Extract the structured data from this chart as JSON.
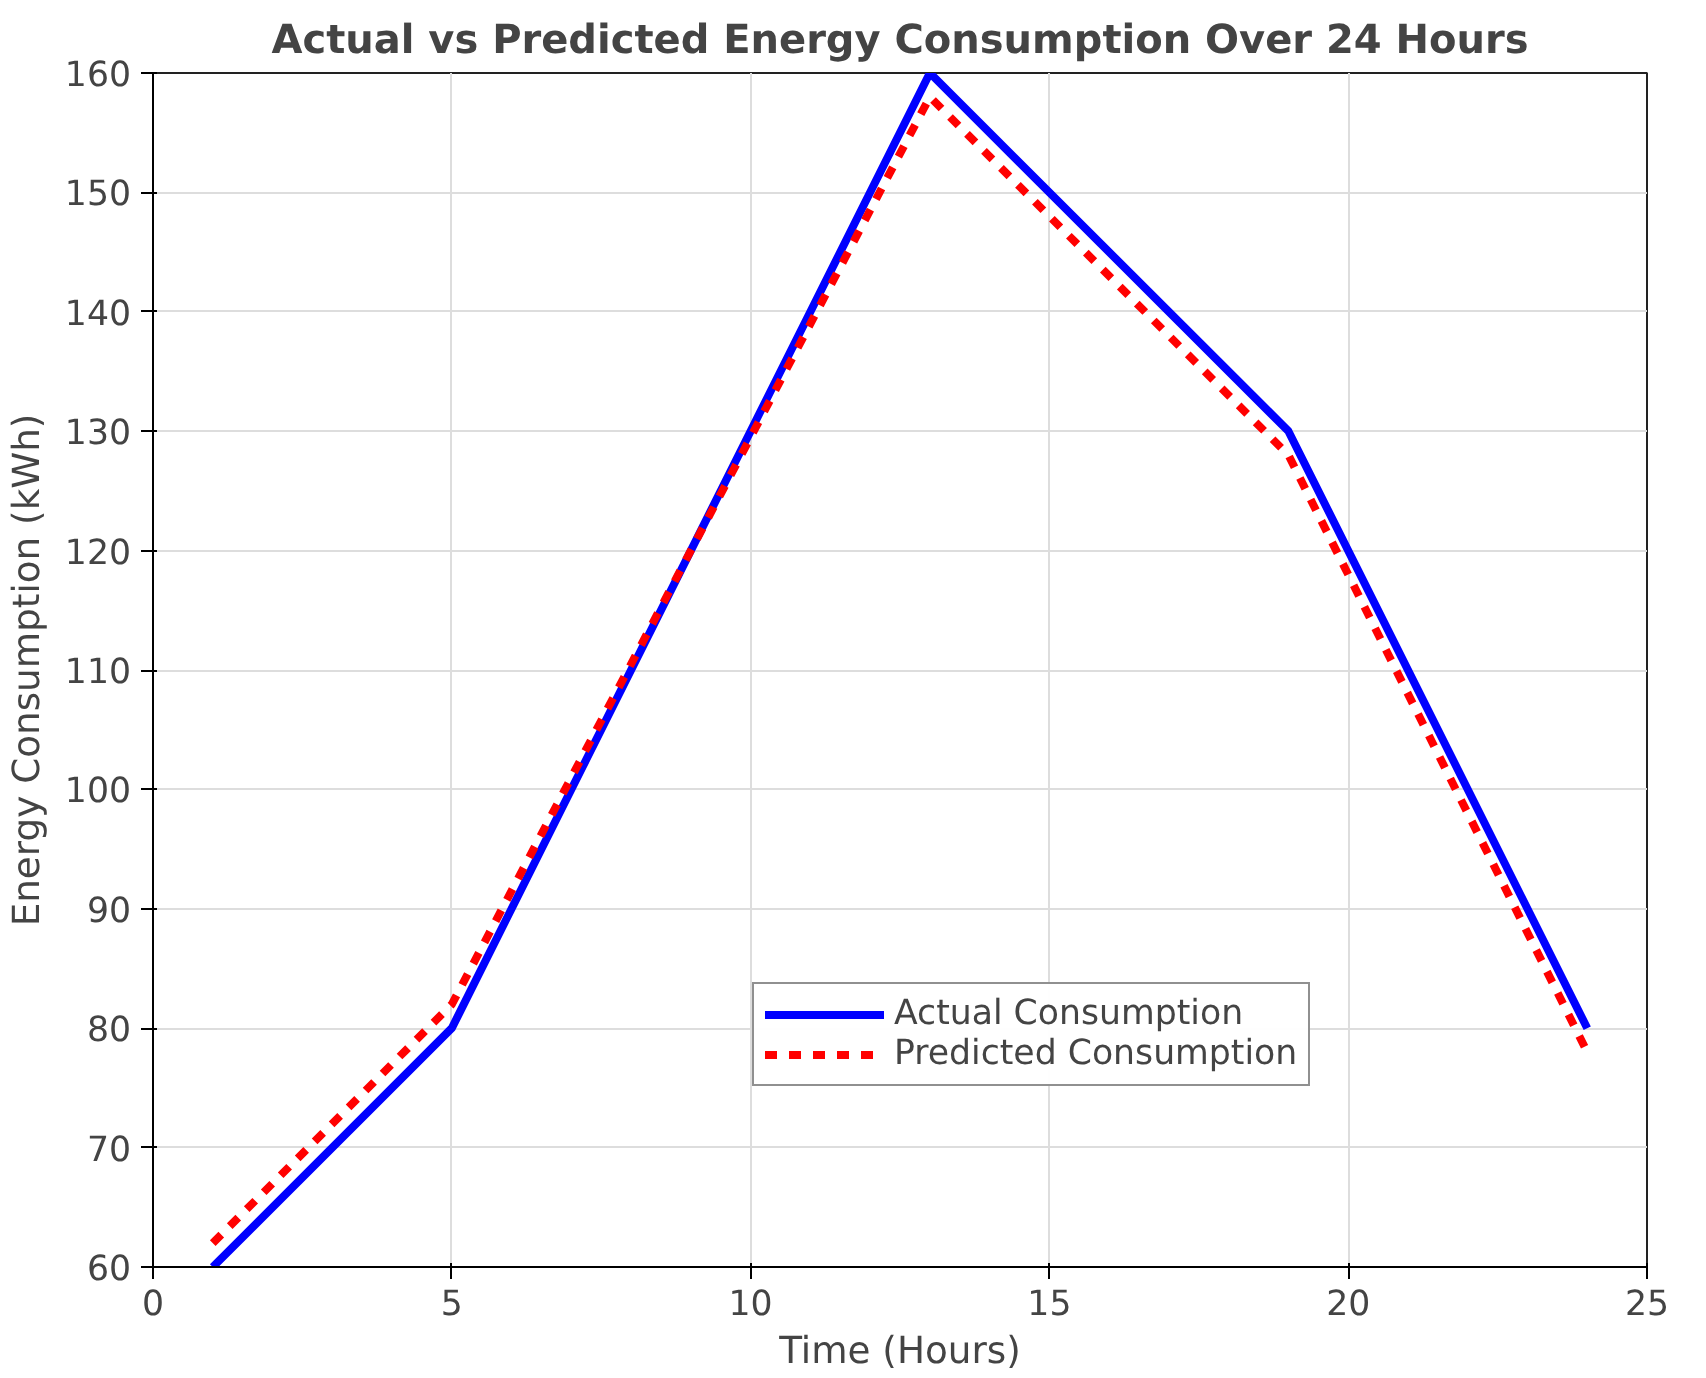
{
  "chart_data": {
    "type": "line",
    "title": "Actual vs Predicted Energy Consumption Over 24 Hours",
    "xlabel": "Time (Hours)",
    "ylabel": "Energy Consumption (kWh)",
    "x": [
      1,
      5,
      13,
      19,
      24
    ],
    "series": [
      {
        "name": "Actual Consumption",
        "color": "#0000ff",
        "values": [
          60,
          80,
          160,
          130,
          80
        ],
        "line_style": "solid"
      },
      {
        "name": "Predicted Consumption",
        "color": "#ff0000",
        "values": [
          62,
          82,
          158,
          128,
          78
        ],
        "line_style": "dashed"
      }
    ],
    "xlim": [
      0,
      25
    ],
    "xticks": [
      0,
      5,
      10,
      15,
      20,
      25
    ],
    "ylim": [
      60,
      160
    ],
    "yticks": [
      60,
      70,
      80,
      90,
      100,
      110,
      120,
      130,
      140,
      150,
      160
    ],
    "grid": true,
    "legend": "bottom"
  }
}
